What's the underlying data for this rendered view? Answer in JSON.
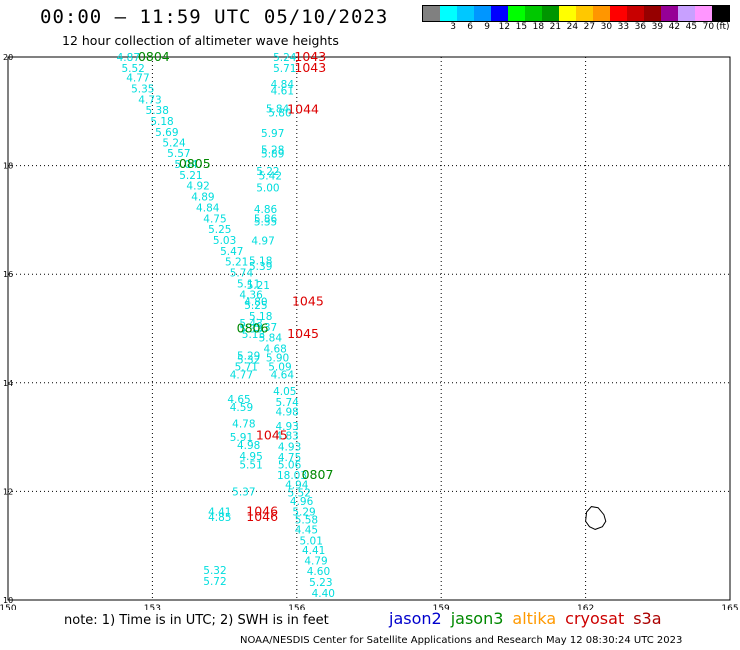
{
  "header": {
    "title": "00:00 – 11:59 UTC 05/10/2023",
    "subtitle": "12 hour collection of altimeter wave heights"
  },
  "legend": {
    "unit_label": "(ft)",
    "bins": [
      {
        "label": "",
        "color": "#808080"
      },
      {
        "label": "3",
        "color": "#00ffff"
      },
      {
        "label": "6",
        "color": "#00c8ff"
      },
      {
        "label": "9",
        "color": "#0096ff"
      },
      {
        "label": "12",
        "color": "#0000ff"
      },
      {
        "label": "15",
        "color": "#00ff00"
      },
      {
        "label": "18",
        "color": "#00c800"
      },
      {
        "label": "21",
        "color": "#009600"
      },
      {
        "label": "24",
        "color": "#ffff00"
      },
      {
        "label": "27",
        "color": "#ffc800"
      },
      {
        "label": "30",
        "color": "#ff9600"
      },
      {
        "label": "33",
        "color": "#ff0000"
      },
      {
        "label": "36",
        "color": "#c80000"
      },
      {
        "label": "39",
        "color": "#960000"
      },
      {
        "label": "42",
        "color": "#960096"
      },
      {
        "label": "45",
        "color": "#c8a0ff"
      },
      {
        "label": "70",
        "color": "#ff96ff"
      },
      {
        "label": "",
        "color": "#000000"
      }
    ]
  },
  "footer": {
    "note": "note: 1) Time is in UTC; 2) SWH is in feet",
    "satellites": [
      {
        "name": "jason2",
        "color": "#0000cc"
      },
      {
        "name": "jason3",
        "color": "#008800"
      },
      {
        "name": "altika",
        "color": "#ff9900"
      },
      {
        "name": "cryosat",
        "color": "#cc0000"
      },
      {
        "name": "s3a",
        "color": "#aa0000"
      }
    ],
    "credit": "NOAA/NESDIS Center for Satellite Applications and Research     May 12 08:30:24 UTC 2023"
  },
  "chart_data": {
    "type": "scatter",
    "xlim": [
      150,
      165
    ],
    "ylim": [
      10,
      20
    ],
    "x_ticks": [
      "150",
      "153",
      "156",
      "159",
      "162",
      "165"
    ],
    "y_ticks": [
      "10",
      "12",
      "14",
      "16",
      "18",
      "20"
    ],
    "grid": true,
    "series": [
      {
        "name": "jason3",
        "color": "#00dddd",
        "points": [
          {
            "lon": 152.5,
            "lat": 20.0,
            "value": "4.87"
          },
          {
            "lon": 152.6,
            "lat": 19.8,
            "value": "5.52"
          },
          {
            "lon": 152.7,
            "lat": 19.62,
            "value": "4.77"
          },
          {
            "lon": 152.8,
            "lat": 19.42,
            "value": "5.35"
          },
          {
            "lon": 152.95,
            "lat": 19.22,
            "value": "4.73"
          },
          {
            "lon": 153.1,
            "lat": 19.02,
            "value": "5.38"
          },
          {
            "lon": 153.2,
            "lat": 18.82,
            "value": "5.18"
          },
          {
            "lon": 153.3,
            "lat": 18.62,
            "value": "5.69"
          },
          {
            "lon": 153.45,
            "lat": 18.43,
            "value": "5.24"
          },
          {
            "lon": 153.55,
            "lat": 18.23,
            "value": "5.57"
          },
          {
            "lon": 153.7,
            "lat": 18.03,
            "value": "5.04"
          },
          {
            "lon": 153.8,
            "lat": 17.83,
            "value": "5.21"
          },
          {
            "lon": 153.95,
            "lat": 17.63,
            "value": "4.92"
          },
          {
            "lon": 154.05,
            "lat": 17.43,
            "value": "4.89"
          },
          {
            "lon": 154.15,
            "lat": 17.23,
            "value": "4.84"
          },
          {
            "lon": 154.3,
            "lat": 17.03,
            "value": "4.75"
          },
          {
            "lon": 154.4,
            "lat": 16.83,
            "value": "5.25"
          },
          {
            "lon": 154.5,
            "lat": 16.63,
            "value": "5.03"
          },
          {
            "lon": 154.65,
            "lat": 16.43,
            "value": "5.47"
          },
          {
            "lon": 154.75,
            "lat": 16.23,
            "value": "5.21"
          },
          {
            "lon": 154.85,
            "lat": 16.03,
            "value": "5.74"
          },
          {
            "lon": 155.0,
            "lat": 15.83,
            "value": "5.11"
          },
          {
            "lon": 155.05,
            "lat": 15.63,
            "value": "4.36"
          },
          {
            "lon": 155.15,
            "lat": 15.43,
            "value": "5.25"
          },
          {
            "lon": 155.25,
            "lat": 15.23,
            "value": "5.18"
          },
          {
            "lon": 155.35,
            "lat": 15.03,
            "value": "5.37"
          },
          {
            "lon": 155.45,
            "lat": 14.83,
            "value": "5.84"
          },
          {
            "lon": 155.55,
            "lat": 14.63,
            "value": "4.68"
          },
          {
            "lon": 155.6,
            "lat": 14.47,
            "value": "5.90"
          },
          {
            "lon": 155.65,
            "lat": 14.3,
            "value": "5.09"
          },
          {
            "lon": 155.7,
            "lat": 14.15,
            "value": "4.64"
          },
          {
            "lon": 155.75,
            "lat": 13.85,
            "value": "4.05"
          },
          {
            "lon": 155.8,
            "lat": 13.65,
            "value": "5.74"
          },
          {
            "lon": 155.8,
            "lat": 13.47,
            "value": "4.98"
          },
          {
            "lon": 155.8,
            "lat": 13.2,
            "value": "4.93"
          },
          {
            "lon": 155.8,
            "lat": 13.03,
            "value": "4.83"
          },
          {
            "lon": 155.85,
            "lat": 12.83,
            "value": "4.93"
          },
          {
            "lon": 155.85,
            "lat": 12.63,
            "value": "4.75"
          },
          {
            "lon": 155.85,
            "lat": 12.5,
            "value": "5.06"
          },
          {
            "lon": 155.9,
            "lat": 12.3,
            "value": "18.03"
          },
          {
            "lon": 156.0,
            "lat": 12.13,
            "value": "4.94"
          },
          {
            "lon": 156.05,
            "lat": 11.98,
            "value": "5.52"
          },
          {
            "lon": 156.1,
            "lat": 11.82,
            "value": "4.96"
          },
          {
            "lon": 156.15,
            "lat": 11.63,
            "value": "5.29"
          },
          {
            "lon": 156.2,
            "lat": 11.48,
            "value": "5.58"
          },
          {
            "lon": 156.2,
            "lat": 11.3,
            "value": "4.45"
          },
          {
            "lon": 156.3,
            "lat": 11.1,
            "value": "5.01"
          },
          {
            "lon": 156.35,
            "lat": 10.92,
            "value": "4.41"
          },
          {
            "lon": 156.4,
            "lat": 10.73,
            "value": "4.79"
          },
          {
            "lon": 156.45,
            "lat": 10.53,
            "value": "4.60"
          },
          {
            "lon": 156.5,
            "lat": 10.33,
            "value": "5.23"
          },
          {
            "lon": 156.55,
            "lat": 10.13,
            "value": "4.40"
          }
        ]
      },
      {
        "name": "cryosat",
        "color": "#00dddd",
        "points": [
          {
            "lon": 155.75,
            "lat": 20.0,
            "value": "5.24"
          },
          {
            "lon": 155.75,
            "lat": 19.8,
            "value": "5.71"
          },
          {
            "lon": 155.7,
            "lat": 19.5,
            "value": "4.84"
          },
          {
            "lon": 155.7,
            "lat": 19.38,
            "value": "4.61"
          },
          {
            "lon": 155.6,
            "lat": 19.05,
            "value": "5.84"
          },
          {
            "lon": 155.65,
            "lat": 18.98,
            "value": "5.80"
          },
          {
            "lon": 155.5,
            "lat": 18.6,
            "value": "5.97"
          },
          {
            "lon": 155.5,
            "lat": 18.3,
            "value": "5.28"
          },
          {
            "lon": 155.5,
            "lat": 18.22,
            "value": "5.89"
          },
          {
            "lon": 155.4,
            "lat": 17.9,
            "value": "5.22"
          },
          {
            "lon": 155.45,
            "lat": 17.82,
            "value": "5.42"
          },
          {
            "lon": 155.4,
            "lat": 17.6,
            "value": "5.00"
          },
          {
            "lon": 155.35,
            "lat": 17.2,
            "value": "4.86"
          },
          {
            "lon": 155.35,
            "lat": 17.03,
            "value": "5.86"
          },
          {
            "lon": 155.35,
            "lat": 16.97,
            "value": "5.35"
          },
          {
            "lon": 155.3,
            "lat": 16.62,
            "value": "4.97"
          },
          {
            "lon": 155.25,
            "lat": 16.25,
            "value": "5.18"
          },
          {
            "lon": 155.25,
            "lat": 16.15,
            "value": "5.39"
          },
          {
            "lon": 155.2,
            "lat": 15.8,
            "value": "5.21"
          },
          {
            "lon": 155.15,
            "lat": 15.5,
            "value": "4.80"
          },
          {
            "lon": 155.05,
            "lat": 15.1,
            "value": "5.43"
          },
          {
            "lon": 155.05,
            "lat": 15.0,
            "value": "5.33"
          },
          {
            "lon": 155.1,
            "lat": 14.9,
            "value": "5.13"
          },
          {
            "lon": 155.0,
            "lat": 14.5,
            "value": "5.29"
          },
          {
            "lon": 155.0,
            "lat": 14.43,
            "value": "5.32"
          },
          {
            "lon": 154.95,
            "lat": 14.3,
            "value": "5.71"
          },
          {
            "lon": 154.85,
            "lat": 14.15,
            "value": "4.77"
          },
          {
            "lon": 154.8,
            "lat": 13.7,
            "value": "4.65"
          },
          {
            "lon": 154.85,
            "lat": 13.55,
            "value": "4.59"
          },
          {
            "lon": 154.9,
            "lat": 13.25,
            "value": "4.78"
          },
          {
            "lon": 154.85,
            "lat": 13.0,
            "value": "5.91"
          },
          {
            "lon": 155.0,
            "lat": 12.85,
            "value": "4.98"
          },
          {
            "lon": 155.05,
            "lat": 12.65,
            "value": "4.95"
          },
          {
            "lon": 155.05,
            "lat": 12.5,
            "value": "5.51"
          },
          {
            "lon": 154.9,
            "lat": 12.0,
            "value": "5.37"
          },
          {
            "lon": 154.4,
            "lat": 11.63,
            "value": "4.41"
          },
          {
            "lon": 154.4,
            "lat": 11.53,
            "value": "4.85"
          },
          {
            "lon": 154.3,
            "lat": 10.55,
            "value": "5.32"
          },
          {
            "lon": 154.3,
            "lat": 10.35,
            "value": "5.72"
          }
        ]
      }
    ],
    "pass_labels": [
      {
        "lon": 152.7,
        "lat": 20.0,
        "text": "0804",
        "color": "#008800"
      },
      {
        "lon": 153.55,
        "lat": 18.03,
        "text": "0805",
        "color": "#008800"
      },
      {
        "lon": 154.75,
        "lat": 15.0,
        "text": "0806",
        "color": "#008800"
      },
      {
        "lon": 156.1,
        "lat": 12.3,
        "text": "0807",
        "color": "#008800"
      },
      {
        "lon": 155.95,
        "lat": 20.0,
        "text": "1043",
        "color": "#dd0000"
      },
      {
        "lon": 155.95,
        "lat": 19.8,
        "text": "1043",
        "color": "#dd0000"
      },
      {
        "lon": 155.8,
        "lat": 19.03,
        "text": "1044",
        "color": "#dd0000"
      },
      {
        "lon": 155.9,
        "lat": 15.5,
        "text": "1045",
        "color": "#dd0000"
      },
      {
        "lon": 155.8,
        "lat": 14.9,
        "text": "1045",
        "color": "#dd0000"
      },
      {
        "lon": 155.15,
        "lat": 13.03,
        "text": "1045",
        "color": "#dd0000"
      },
      {
        "lon": 154.95,
        "lat": 11.63,
        "text": "1046",
        "color": "#dd0000"
      },
      {
        "lon": 154.95,
        "lat": 11.53,
        "text": "1046",
        "color": "#dd0000"
      }
    ],
    "coastline": [
      [
        162.0,
        11.45
      ],
      [
        162.08,
        11.35
      ],
      [
        162.2,
        11.3
      ],
      [
        162.35,
        11.35
      ],
      [
        162.42,
        11.45
      ],
      [
        162.38,
        11.57
      ],
      [
        162.26,
        11.7
      ],
      [
        162.12,
        11.72
      ],
      [
        162.02,
        11.62
      ],
      [
        162.0,
        11.45
      ]
    ]
  }
}
